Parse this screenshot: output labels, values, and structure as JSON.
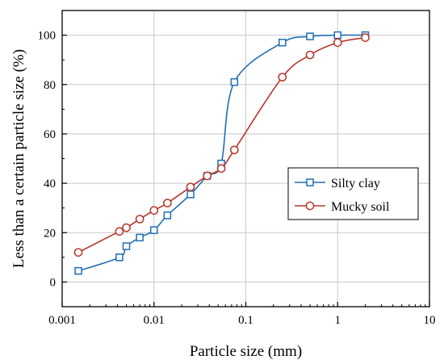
{
  "chart_data": {
    "type": "line",
    "xlabel": "Particle size (mm)",
    "ylabel": "Less than a certain particle size (%)",
    "xscale": "log",
    "xlim": [
      0.001,
      10
    ],
    "ylim": [
      -10,
      110
    ],
    "xticks": [
      {
        "value": 0.001,
        "label": "0.001"
      },
      {
        "value": 0.01,
        "label": "0.01"
      },
      {
        "value": 0.1,
        "label": "0.1"
      },
      {
        "value": 1,
        "label": "1"
      },
      {
        "value": 10,
        "label": "10"
      }
    ],
    "yticks": [
      {
        "value": 0,
        "label": "0"
      },
      {
        "value": 20,
        "label": "20"
      },
      {
        "value": 40,
        "label": "40"
      },
      {
        "value": 60,
        "label": "60"
      },
      {
        "value": 80,
        "label": "80"
      },
      {
        "value": 100,
        "label": "100"
      }
    ],
    "grid": true,
    "legend_position": "center-right",
    "series": [
      {
        "name": "Silty clay",
        "color": "#1f6fb4",
        "marker": "square",
        "x": [
          0.0015,
          0.0042,
          0.005,
          0.007,
          0.01,
          0.014,
          0.025,
          0.038,
          0.054,
          0.075,
          0.25,
          0.5,
          1,
          2
        ],
        "y": [
          4.5,
          10,
          14.5,
          18,
          21,
          27,
          35.5,
          43,
          48,
          81,
          97,
          99.5,
          100,
          100
        ]
      },
      {
        "name": "Mucky soil",
        "color": "#b5362b",
        "marker": "circle",
        "x": [
          0.0015,
          0.0042,
          0.005,
          0.007,
          0.01,
          0.014,
          0.025,
          0.038,
          0.054,
          0.075,
          0.25,
          0.5,
          1,
          2
        ],
        "y": [
          12,
          20.5,
          22,
          25.5,
          29,
          32,
          38.5,
          43,
          46,
          53.5,
          83,
          92,
          97,
          99
        ]
      }
    ]
  }
}
